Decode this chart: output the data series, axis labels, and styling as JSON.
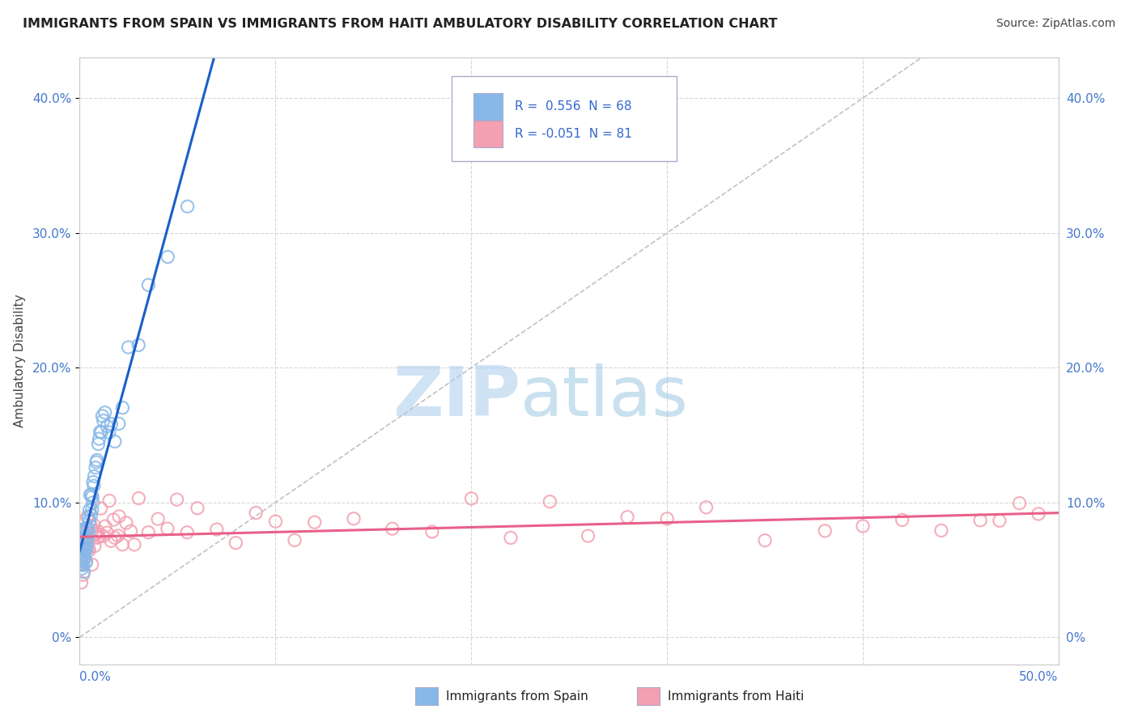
{
  "title": "IMMIGRANTS FROM SPAIN VS IMMIGRANTS FROM HAITI AMBULATORY DISABILITY CORRELATION CHART",
  "source": "Source: ZipAtlas.com",
  "ylabel": "Ambulatory Disability",
  "ytick_vals": [
    0,
    10,
    20,
    30,
    40
  ],
  "ytick_labels": [
    "0%",
    "10.0%",
    "20.0%",
    "30.0%",
    "40.0%"
  ],
  "xmin": 0,
  "xmax": 50,
  "ymin": -2,
  "ymax": 43,
  "spain_R": 0.556,
  "spain_N": 68,
  "haiti_R": -0.051,
  "haiti_N": 81,
  "spain_color": "#87B8E8",
  "haiti_color": "#F4A0B0",
  "spain_line_color": "#1A5FC8",
  "haiti_line_color": "#E8608A",
  "legend_box_color": "#AAAACC",
  "watermark_color": "#C8DCEF"
}
